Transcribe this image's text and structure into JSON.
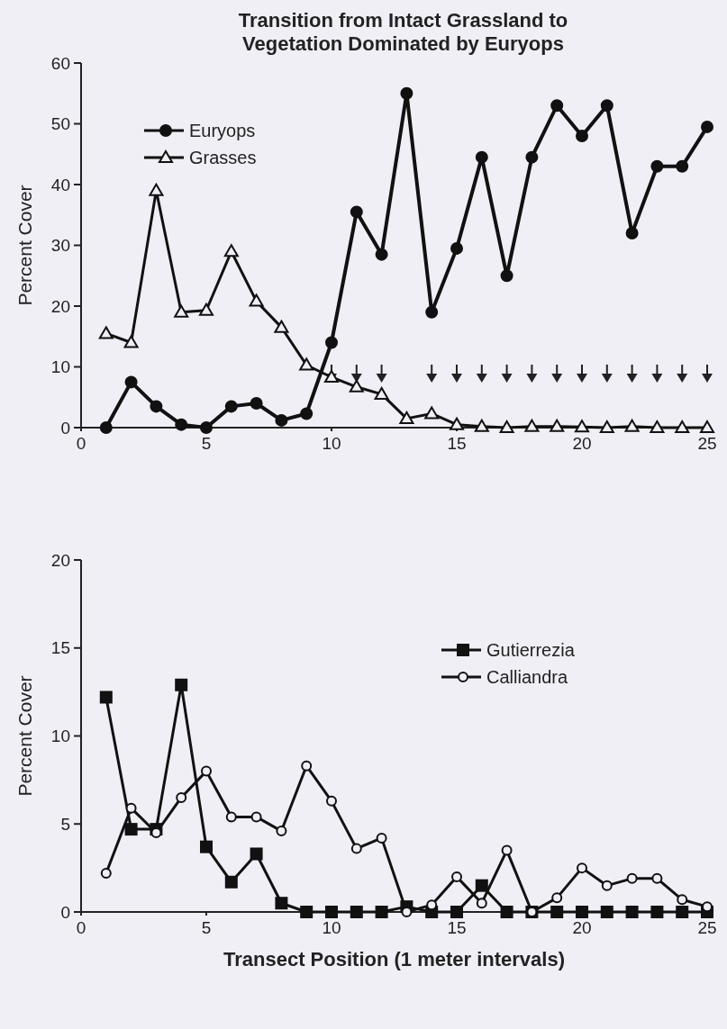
{
  "chart_data": [
    {
      "type": "line",
      "title": "Transition from Intact Grassland to\nVegetation Dominated by Euryops",
      "ylabel": "Percent Cover",
      "x": [
        1,
        2,
        3,
        4,
        5,
        6,
        7,
        8,
        9,
        10,
        11,
        12,
        13,
        14,
        15,
        16,
        17,
        18,
        19,
        20,
        21,
        22,
        23,
        24,
        25
      ],
      "xlim": [
        0,
        25
      ],
      "xticks": [
        0,
        5,
        10,
        15,
        20,
        25
      ],
      "ylim": [
        0,
        60
      ],
      "yticks": [
        0,
        10,
        20,
        30,
        40,
        50,
        60
      ],
      "legend": "top left",
      "grid": false,
      "series": [
        {
          "name": "Euryops",
          "color": "#111111",
          "marker": "circle",
          "values": [
            0,
            7.5,
            3.5,
            0.5,
            0,
            3.5,
            4,
            1.2,
            2.3,
            14,
            35.5,
            28.5,
            55,
            19,
            29.5,
            44.5,
            25,
            44.5,
            53,
            48,
            53,
            32,
            43,
            43,
            49.5
          ]
        },
        {
          "name": "Grasses",
          "color": "#111111",
          "marker": "triangle",
          "values": [
            15.5,
            14,
            39,
            19,
            19.3,
            29,
            20.8,
            16.5,
            10.3,
            8.3,
            6.7,
            5.5,
            1.5,
            2.3,
            0.5,
            0.2,
            0,
            0.2,
            0.2,
            0.1,
            0,
            0.2,
            0,
            0,
            0
          ]
        }
      ]
    },
    {
      "type": "line",
      "xlabel": "Transect Position (1 meter intervals)",
      "ylabel": "Percent Cover",
      "x": [
        1,
        2,
        3,
        4,
        5,
        6,
        7,
        8,
        9,
        10,
        11,
        12,
        13,
        14,
        15,
        16,
        17,
        18,
        19,
        20,
        21,
        22,
        23,
        24,
        25
      ],
      "xlim": [
        0,
        25
      ],
      "xticks": [
        0,
        5,
        10,
        15,
        20,
        25
      ],
      "ylim": [
        0,
        20
      ],
      "yticks": [
        0,
        5,
        10,
        15,
        20
      ],
      "legend": "top right",
      "grid": false,
      "series": [
        {
          "name": "Gutierrezia",
          "color": "#111111",
          "marker": "square",
          "values": [
            12.2,
            4.7,
            4.7,
            12.9,
            3.7,
            1.7,
            3.3,
            0.5,
            0,
            0,
            0,
            0,
            0.3,
            0,
            0,
            1.5,
            0,
            0,
            0,
            0,
            0,
            0,
            0,
            0,
            0
          ]
        },
        {
          "name": "Calliandra",
          "color": "#111111",
          "marker": "circle",
          "values": [
            2.2,
            5.9,
            4.5,
            6.5,
            8,
            5.4,
            5.4,
            4.6,
            8.3,
            6.3,
            3.6,
            4.2,
            0,
            0.4,
            2,
            0.5,
            3.5,
            0,
            0.8,
            2.5,
            1.5,
            1.9,
            1.9,
            0.7,
            0.3
          ]
        }
      ]
    }
  ]
}
